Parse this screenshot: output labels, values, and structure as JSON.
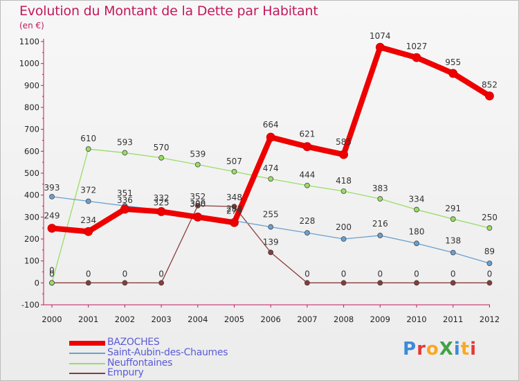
{
  "title": "Evolution du Montant de la Dette par Habitant",
  "unit": "(en €)",
  "logo": {
    "text": "ProXiti",
    "colors": [
      "#3b8bd8",
      "#e53935",
      "#f9a825",
      "#43a047",
      "#3b8bd8",
      "#f9a825",
      "#e53935"
    ]
  },
  "chart_data": {
    "type": "line",
    "x": [
      "2000",
      "2001",
      "2002",
      "2003",
      "2004",
      "2005",
      "2006",
      "2007",
      "2008",
      "2009",
      "2010",
      "2011",
      "2012"
    ],
    "ylim": [
      -100,
      1100
    ],
    "yticks": [
      "-100",
      "0",
      "100",
      "200",
      "300",
      "400",
      "500",
      "600",
      "700",
      "800",
      "900",
      "1000",
      "1100"
    ],
    "grid": false,
    "legend_position": "bottom-left",
    "series": [
      {
        "name": "BAZOCHES",
        "color": "#ee0000",
        "values": [
          249,
          234,
          336,
          325,
          300,
          275,
          664,
          621,
          585,
          1074,
          1027,
          955,
          852
        ],
        "labels": [
          "249",
          "234",
          "336",
          "325",
          "300",
          "275",
          "664",
          "621",
          "585",
          "1074",
          "1027",
          "955",
          "852"
        ]
      },
      {
        "name": "Saint-Aubin-des-Chaumes",
        "color": "#6aa0d0",
        "values": [
          393,
          372,
          351,
          332,
          308,
          283,
          255,
          228,
          200,
          216,
          180,
          138,
          89
        ],
        "labels": [
          "393",
          "372",
          "351",
          "332",
          "308",
          "283",
          "255",
          "228",
          "200",
          "216",
          "180",
          "138",
          "89"
        ]
      },
      {
        "name": "Neuffontaines",
        "color": "#99dd66",
        "values": [
          0,
          610,
          593,
          570,
          539,
          507,
          474,
          444,
          418,
          383,
          334,
          291,
          250
        ],
        "labels": [
          "0",
          "610",
          "593",
          "570",
          "539",
          "507",
          "474",
          "444",
          "418",
          "383",
          "334",
          "291",
          "250"
        ]
      },
      {
        "name": "Empury",
        "color": "#8b3a3a",
        "values": [
          0,
          0,
          0,
          0,
          352,
          348,
          139,
          0,
          0,
          0,
          0,
          0,
          0
        ],
        "labels": [
          "0",
          "0",
          "0",
          "0",
          "352",
          "348",
          "139",
          "0",
          "0",
          "0",
          "0",
          "0",
          "0"
        ]
      }
    ]
  }
}
